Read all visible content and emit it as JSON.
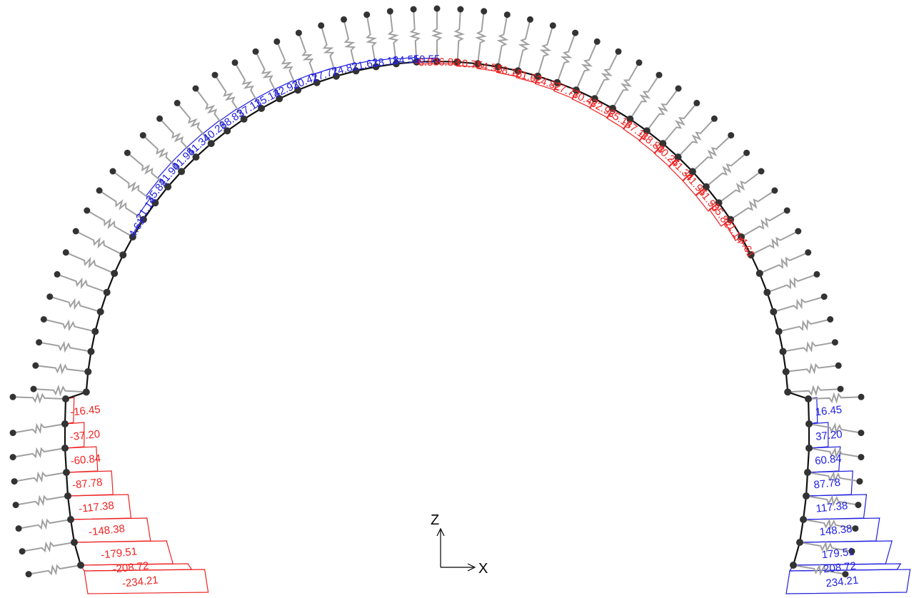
{
  "diagram": {
    "type": "tunnel lining shear force diagram with ground springs",
    "colors": {
      "positive": "#2020e0",
      "negative": "#ee2222",
      "lining": "#111111",
      "spring": "#a0a0a0",
      "node": "#333333"
    },
    "axes": {
      "vertical": "Z",
      "horizontal": "X"
    },
    "left_side": {
      "arch_labels": [
        "4.61",
        "21.14",
        "35.82",
        "41.90",
        "41.95",
        "41.34",
        "40.26",
        "38.83",
        "37.11",
        "35.14",
        "32.92",
        "30.47",
        "27.77",
        "24.82",
        "21.62",
        "18.18",
        "14.55",
        "10.55"
      ],
      "wall_labels": [
        "-16.45",
        "-37.20",
        "-60.84",
        "-87.78",
        "-117.38",
        "-148.38",
        "-179.51",
        "-208.72",
        "-234.21"
      ]
    },
    "right_side": {
      "arch_labels": [
        "-6.83",
        "-6.83",
        "-10.75",
        "-14.55",
        "-18.18",
        "-21.62",
        "-24.82",
        "-27.77",
        "-30.47",
        "-32.92",
        "-35.14",
        "-37.11",
        "-38.83",
        "-40.26",
        "-41.34",
        "-41.95",
        "-41.90",
        "-35.82",
        "-21.14",
        "-4.61"
      ],
      "wall_labels": [
        "16.45",
        "37.20",
        "60.84",
        "87.78",
        "117.38",
        "148.38",
        "179.51",
        "208.72",
        "234.21"
      ]
    }
  }
}
